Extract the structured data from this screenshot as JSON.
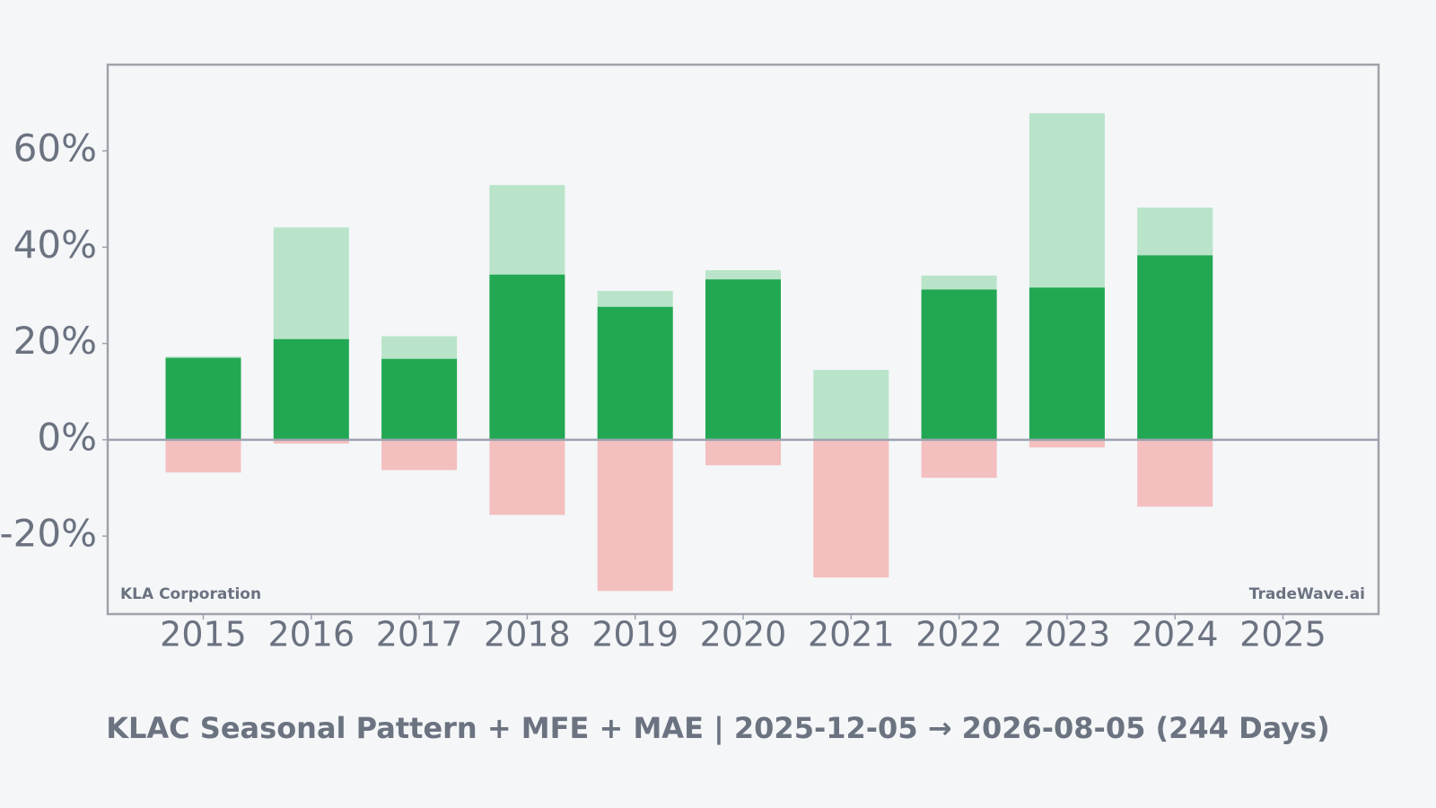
{
  "chart_data": {
    "type": "bar",
    "title": "KLAC Seasonal Pattern + MFE + MAE | 2025-12-05 → 2026-08-05 (244 Days)",
    "annotations": [
      "KLA Corporation",
      "TradeWave.ai"
    ],
    "categories": [
      "2015",
      "2016",
      "2017",
      "2018",
      "2019",
      "2020",
      "2021",
      "2022",
      "2023",
      "2024",
      "2025"
    ],
    "series": [
      {
        "color": "#b9e4c9",
        "values": [
          17.3,
          44.1,
          21.5,
          52.9,
          30.9,
          35.2,
          14.5,
          34.1,
          67.8,
          48.2,
          null
        ]
      },
      {
        "color": "#22a852",
        "values": [
          17.0,
          20.9,
          16.8,
          34.3,
          27.6,
          33.3,
          -0.4,
          31.2,
          31.6,
          38.3,
          null
        ]
      },
      {
        "color": "#f4bfbf",
        "values": [
          -6.8,
          -0.8,
          -6.3,
          -15.6,
          -31.4,
          -5.3,
          -28.6,
          -7.9,
          -1.6,
          -13.9,
          null
        ]
      }
    ],
    "ylim": [
      -36.2,
      77.9
    ],
    "yticks": [
      {
        "value": -20,
        "label": "-20%"
      },
      {
        "value": 0,
        "label": "0%"
      },
      {
        "value": 20,
        "label": "20%"
      },
      {
        "value": 40,
        "label": "40%"
      },
      {
        "value": 60,
        "label": "60%"
      }
    ],
    "grid": false
  }
}
